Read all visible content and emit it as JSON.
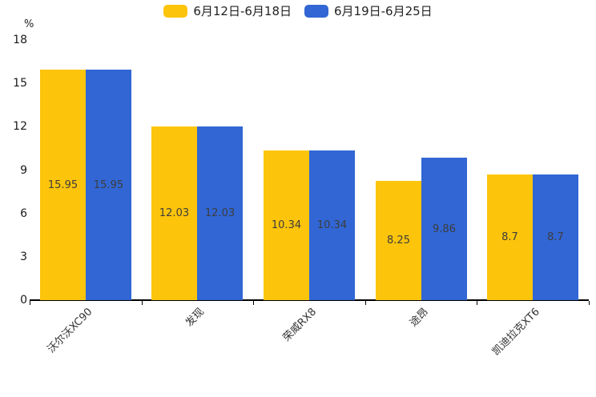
{
  "chart_data": {
    "type": "bar",
    "title": "",
    "ylabel": "%",
    "xlabel": "",
    "categories": [
      "沃尔沃XC90",
      "发现",
      "荣威RX8",
      "途昂",
      "凯迪拉克XT6"
    ],
    "series": [
      {
        "name": "6月12日-6月18日",
        "color": "#FCC40B",
        "values": [
          15.95,
          12.03,
          10.34,
          8.25,
          8.7
        ]
      },
      {
        "name": "6月19日-6月25日",
        "color": "#3166D4",
        "values": [
          15.95,
          12.03,
          10.34,
          9.86,
          8.7
        ]
      }
    ],
    "value_label_color": "#3d3d3d",
    "axis_color": "#000000",
    "yticks": [
      0,
      3,
      6,
      9,
      12,
      15,
      18
    ],
    "ylim": [
      0,
      18
    ],
    "grid": false,
    "legend_position": "top",
    "category_label_rotation_deg": 45
  }
}
